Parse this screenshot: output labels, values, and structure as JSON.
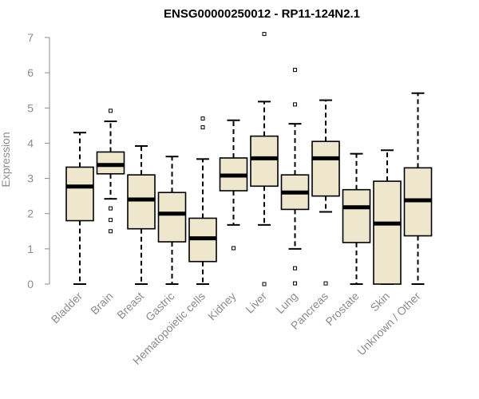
{
  "chart_data": {
    "type": "box",
    "title": "ENSG00000250012 - RP11-124N2.1",
    "ylabel": "Expression",
    "xlabel": "",
    "ylim": [
      0,
      7
    ],
    "yticks": [
      0,
      1,
      2,
      3,
      4,
      5,
      6,
      7
    ],
    "categories": [
      "Bladder",
      "Brain",
      "Breast",
      "Gastric",
      "Hematopoietic cells",
      "Kidney",
      "Liver",
      "Lung",
      "Pancreas",
      "Prostate",
      "Skin",
      "Unknown / Other"
    ],
    "boxes": [
      {
        "min": 0.0,
        "q1": 1.8,
        "median": 2.77,
        "q3": 3.32,
        "max": 4.3,
        "outliers": []
      },
      {
        "min": 2.42,
        "q1": 3.13,
        "median": 3.38,
        "q3": 3.75,
        "max": 4.62,
        "outliers": [
          4.92,
          2.15,
          1.82,
          1.5
        ]
      },
      {
        "min": 0.0,
        "q1": 1.57,
        "median": 2.4,
        "q3": 3.1,
        "max": 3.92,
        "outliers": []
      },
      {
        "min": 0.0,
        "q1": 1.2,
        "median": 2.0,
        "q3": 2.6,
        "max": 3.62,
        "outliers": []
      },
      {
        "min": 0.0,
        "q1": 0.64,
        "median": 1.3,
        "q3": 1.87,
        "max": 3.55,
        "outliers": [
          4.7,
          4.45
        ]
      },
      {
        "min": 1.68,
        "q1": 2.65,
        "median": 3.08,
        "q3": 3.58,
        "max": 4.65,
        "outliers": [
          1.02
        ]
      },
      {
        "min": 1.68,
        "q1": 2.78,
        "median": 3.57,
        "q3": 4.2,
        "max": 5.18,
        "outliers": [
          7.1,
          0.0
        ]
      },
      {
        "min": 1.0,
        "q1": 2.12,
        "median": 2.6,
        "q3": 3.1,
        "max": 4.55,
        "outliers": [
          6.08,
          5.1,
          0.45,
          0.02
        ]
      },
      {
        "min": 2.05,
        "q1": 2.5,
        "median": 3.57,
        "q3": 4.05,
        "max": 5.22,
        "outliers": [
          0.02
        ]
      },
      {
        "min": 0.0,
        "q1": 1.18,
        "median": 2.18,
        "q3": 2.68,
        "max": 3.7,
        "outliers": []
      },
      {
        "min": 0.0,
        "q1": 0.0,
        "median": 1.72,
        "q3": 2.92,
        "max": 3.8,
        "outliers": []
      },
      {
        "min": 0.0,
        "q1": 1.37,
        "median": 2.38,
        "q3": 3.3,
        "max": 5.42,
        "outliers": []
      }
    ],
    "colors": {
      "box_fill": "#eee7cd",
      "box_stroke": "#000000",
      "median": "#000000",
      "axis": "#8c8c8c",
      "text_gray": "#8c8c8c"
    },
    "grid": false
  }
}
